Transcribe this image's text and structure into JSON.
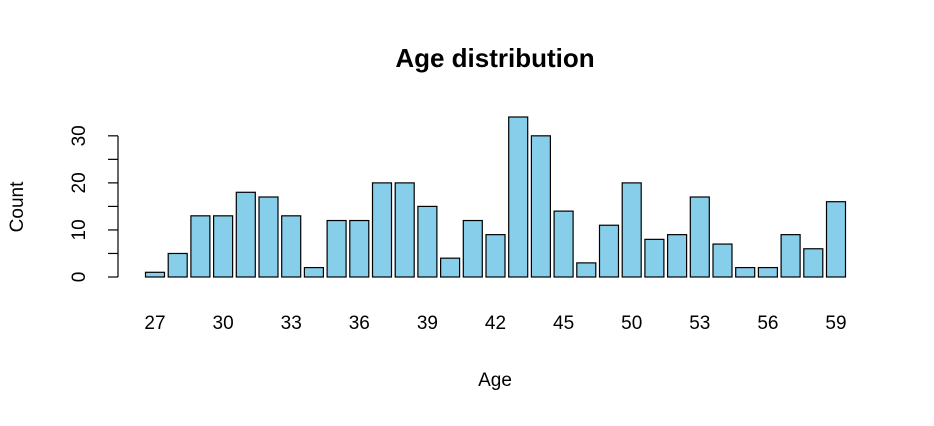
{
  "chart_data": {
    "type": "bar",
    "title": "Age distribution",
    "x_label": "Age",
    "y_label": "Count",
    "categories": [
      "27",
      null,
      null,
      "30",
      null,
      null,
      "33",
      null,
      null,
      "36",
      null,
      null,
      "39",
      null,
      null,
      "42",
      null,
      null,
      "45",
      null,
      null,
      "50",
      null,
      null,
      "53",
      null,
      null,
      "56",
      null,
      null,
      "59"
    ],
    "values": [
      1,
      5,
      13,
      13,
      18,
      17,
      13,
      2,
      12,
      12,
      20,
      20,
      15,
      4,
      12,
      9,
      34,
      30,
      14,
      3,
      11,
      20,
      8,
      9,
      17,
      7,
      2,
      2,
      9,
      6,
      16
    ],
    "color": "#87ceeb",
    "ylim": [
      0,
      34
    ],
    "yticks": [
      0,
      10,
      20,
      30
    ],
    "yminor_ticks": [
      5,
      15,
      25
    ]
  }
}
